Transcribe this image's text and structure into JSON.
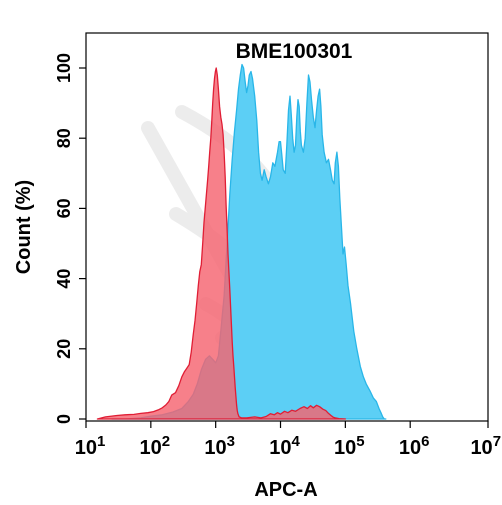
{
  "chart_data": {
    "type": "area",
    "title": "BME100301",
    "xlabel": "APC-A",
    "ylabel": "Count  (%)",
    "x_scale": "log",
    "xlim": [
      10,
      15848931.92
    ],
    "ylim": [
      0,
      110
    ],
    "x_ticks": [
      {
        "value": 10,
        "base": "10",
        "exp": "1"
      },
      {
        "value": 100,
        "base": "10",
        "exp": "2"
      },
      {
        "value": 1000,
        "base": "10",
        "exp": "3"
      },
      {
        "value": 10000,
        "base": "10",
        "exp": "4"
      },
      {
        "value": 100000,
        "base": "10",
        "exp": "5"
      },
      {
        "value": 1000000,
        "base": "10",
        "exp": "6"
      },
      {
        "value": 15848931.92,
        "base": "10",
        "exp": "7.2"
      }
    ],
    "y_ticks": [
      0,
      20,
      40,
      60,
      80,
      100
    ],
    "grid": false,
    "legend": "none",
    "series": [
      {
        "color": "#29b6e8",
        "fill": "#5ccff5",
        "points": [
          [
            25,
            0
          ],
          [
            40,
            0
          ],
          [
            70,
            0.3
          ],
          [
            100,
            0.8
          ],
          [
            150,
            1.2
          ],
          [
            220,
            2
          ],
          [
            300,
            3
          ],
          [
            380,
            5
          ],
          [
            450,
            7
          ],
          [
            520,
            10
          ],
          [
            600,
            14
          ],
          [
            700,
            17
          ],
          [
            800,
            18
          ],
          [
            900,
            17
          ],
          [
            1000,
            16
          ],
          [
            1100,
            18
          ],
          [
            1200,
            25
          ],
          [
            1350,
            35
          ],
          [
            1500,
            50
          ],
          [
            1650,
            64
          ],
          [
            1800,
            74
          ],
          [
            1950,
            82
          ],
          [
            2100,
            88
          ],
          [
            2250,
            94
          ],
          [
            2400,
            98
          ],
          [
            2550,
            101
          ],
          [
            2700,
            100
          ],
          [
            2850,
            96
          ],
          [
            3000,
            93
          ],
          [
            3150,
            95
          ],
          [
            3300,
            98
          ],
          [
            3500,
            99
          ],
          [
            3700,
            97
          ],
          [
            4000,
            92
          ],
          [
            4300,
            85
          ],
          [
            4600,
            76
          ],
          [
            4900,
            70
          ],
          [
            5200,
            68
          ],
          [
            5600,
            71
          ],
          [
            6000,
            69
          ],
          [
            6500,
            67
          ],
          [
            7000,
            69
          ],
          [
            7600,
            73
          ],
          [
            8200,
            72
          ],
          [
            9000,
            76
          ],
          [
            9500,
            79
          ],
          [
            10000,
            79
          ],
          [
            10500,
            75
          ],
          [
            11000,
            71
          ],
          [
            11800,
            70
          ],
          [
            12500,
            78
          ],
          [
            13300,
            88
          ],
          [
            14000,
            92
          ],
          [
            14600,
            87
          ],
          [
            15400,
            80
          ],
          [
            16200,
            76
          ],
          [
            17000,
            78
          ],
          [
            17800,
            86
          ],
          [
            18600,
            91
          ],
          [
            19400,
            89
          ],
          [
            20200,
            82
          ],
          [
            21000,
            78
          ],
          [
            22500,
            76
          ],
          [
            24000,
            80
          ],
          [
            25500,
            90
          ],
          [
            27000,
            98
          ],
          [
            28500,
            96
          ],
          [
            30000,
            91
          ],
          [
            32000,
            86
          ],
          [
            34000,
            83
          ],
          [
            36000,
            88
          ],
          [
            38000,
            92
          ],
          [
            40000,
            94
          ],
          [
            42000,
            89
          ],
          [
            44000,
            81
          ],
          [
            47000,
            76
          ],
          [
            51000,
            73
          ],
          [
            55000,
            74
          ],
          [
            59000,
            71
          ],
          [
            63000,
            68
          ],
          [
            67000,
            67
          ],
          [
            70000,
            73
          ],
          [
            74000,
            76
          ],
          [
            78000,
            72
          ],
          [
            82000,
            63
          ],
          [
            87000,
            55
          ],
          [
            92000,
            47
          ],
          [
            97000,
            49
          ],
          [
            103000,
            44
          ],
          [
            110000,
            38
          ],
          [
            120000,
            33
          ],
          [
            135000,
            25
          ],
          [
            150000,
            20
          ],
          [
            170000,
            15
          ],
          [
            190000,
            12
          ],
          [
            210000,
            10
          ],
          [
            240000,
            8
          ],
          [
            270000,
            6
          ],
          [
            300000,
            5
          ],
          [
            330000,
            3
          ],
          [
            360000,
            1.5
          ],
          [
            380000,
            0.5
          ],
          [
            400000,
            0
          ],
          [
            420000,
            0
          ]
        ]
      },
      {
        "color": "#e01e35",
        "fill": "#f56470",
        "opacity": 0.82,
        "points": [
          [
            15,
            0
          ],
          [
            20,
            0.6
          ],
          [
            30,
            1
          ],
          [
            40,
            1.2
          ],
          [
            55,
            1.3
          ],
          [
            70,
            1.6
          ],
          [
            90,
            1.8
          ],
          [
            110,
            2.1
          ],
          [
            130,
            2.6
          ],
          [
            150,
            3.2
          ],
          [
            170,
            4
          ],
          [
            190,
            5
          ],
          [
            210,
            6.8
          ],
          [
            240,
            7.5
          ],
          [
            270,
            9.5
          ],
          [
            300,
            12
          ],
          [
            330,
            13.5
          ],
          [
            360,
            14.5
          ],
          [
            390,
            15.5
          ],
          [
            420,
            19
          ],
          [
            450,
            24
          ],
          [
            480,
            28
          ],
          [
            510,
            33
          ],
          [
            540,
            38
          ],
          [
            570,
            42
          ],
          [
            600,
            44
          ],
          [
            630,
            50
          ],
          [
            660,
            56
          ],
          [
            690,
            60
          ],
          [
            720,
            64
          ],
          [
            750,
            68
          ],
          [
            780,
            72
          ],
          [
            810,
            76
          ],
          [
            840,
            80
          ],
          [
            870,
            85
          ],
          [
            900,
            90
          ],
          [
            930,
            94
          ],
          [
            960,
            97
          ],
          [
            990,
            99
          ],
          [
            1020,
            100
          ],
          [
            1060,
            98
          ],
          [
            1100,
            94
          ],
          [
            1150,
            89
          ],
          [
            1200,
            86
          ],
          [
            1250,
            84
          ],
          [
            1300,
            81
          ],
          [
            1350,
            76
          ],
          [
            1400,
            69
          ],
          [
            1450,
            61
          ],
          [
            1500,
            54
          ],
          [
            1550,
            47
          ],
          [
            1600,
            42
          ],
          [
            1650,
            37
          ],
          [
            1700,
            32
          ],
          [
            1750,
            27
          ],
          [
            1800,
            22
          ],
          [
            1850,
            18
          ],
          [
            1900,
            15
          ],
          [
            1950,
            12
          ],
          [
            2000,
            9
          ],
          [
            2050,
            6.5
          ],
          [
            2100,
            4
          ],
          [
            2150,
            2.5
          ],
          [
            2200,
            1.5
          ],
          [
            2300,
            0.6
          ],
          [
            2500,
            0.3
          ],
          [
            3000,
            0.3
          ],
          [
            4000,
            0.6
          ],
          [
            5000,
            0.3
          ],
          [
            6000,
            0.7
          ],
          [
            7000,
            1.5
          ],
          [
            8000,
            1.2
          ],
          [
            9000,
            1.8
          ],
          [
            10000,
            1.4
          ],
          [
            11500,
            2.2
          ],
          [
            13000,
            1.8
          ],
          [
            15000,
            2.5
          ],
          [
            17000,
            2.2
          ],
          [
            20000,
            3
          ],
          [
            23000,
            3.5
          ],
          [
            26000,
            3
          ],
          [
            29000,
            3.8
          ],
          [
            32000,
            3.2
          ],
          [
            36000,
            3.9
          ],
          [
            40000,
            3.5
          ],
          [
            45000,
            2.8
          ],
          [
            50000,
            2.4
          ],
          [
            55000,
            1.6
          ],
          [
            60000,
            1
          ],
          [
            65000,
            0.5
          ],
          [
            70000,
            0.3
          ],
          [
            80000,
            0.1
          ],
          [
            100000,
            0
          ]
        ]
      }
    ]
  }
}
